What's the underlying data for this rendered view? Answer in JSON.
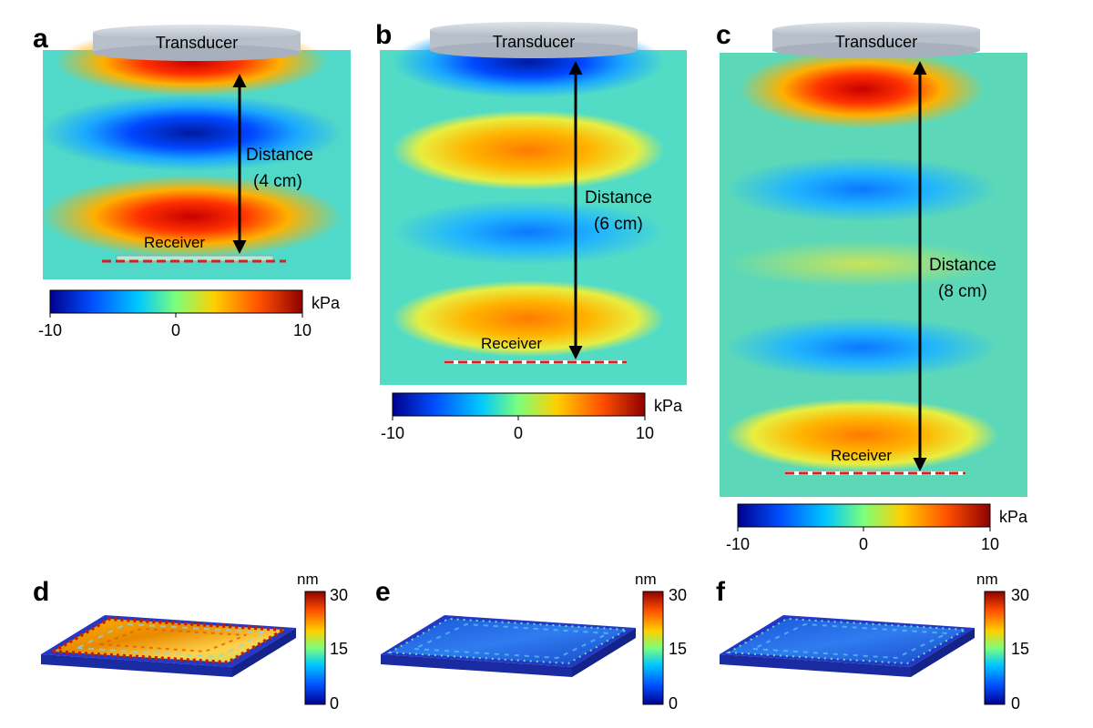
{
  "panels": [
    {
      "letter": "a",
      "transducer": "Transducer",
      "distance_label": "Distance",
      "distance_value": "(4 cm)",
      "receiver": "Receiver",
      "colorbar": {
        "unit": "kPa",
        "min": "-10",
        "mid": "0",
        "max": "10"
      }
    },
    {
      "letter": "b",
      "transducer": "Transducer",
      "distance_label": "Distance",
      "distance_value": "(6 cm)",
      "receiver": "Receiver",
      "colorbar": {
        "unit": "kPa",
        "min": "-10",
        "mid": "0",
        "max": "10"
      }
    },
    {
      "letter": "c",
      "transducer": "Transducer",
      "distance_label": "Distance",
      "distance_value": "(8 cm)",
      "receiver": "Receiver",
      "colorbar": {
        "unit": "kPa",
        "min": "-10",
        "mid": "0",
        "max": "10"
      }
    }
  ],
  "surfaces": [
    {
      "letter": "d",
      "unit": "nm",
      "max": "30",
      "mid": "15",
      "min": "0"
    },
    {
      "letter": "e",
      "unit": "nm",
      "max": "30",
      "mid": "15",
      "min": "0"
    },
    {
      "letter": "f",
      "unit": "nm",
      "max": "30",
      "mid": "15",
      "min": "0"
    }
  ],
  "colors": {
    "jet": [
      "#00008f",
      "#0050ff",
      "#00c8ff",
      "#7dff7a",
      "#ffd000",
      "#ff5000",
      "#8f0000"
    ],
    "pressure_field_bg": "#4fd8c4",
    "receiver_dash": "#d62020",
    "transducer": "#c7ced8"
  }
}
